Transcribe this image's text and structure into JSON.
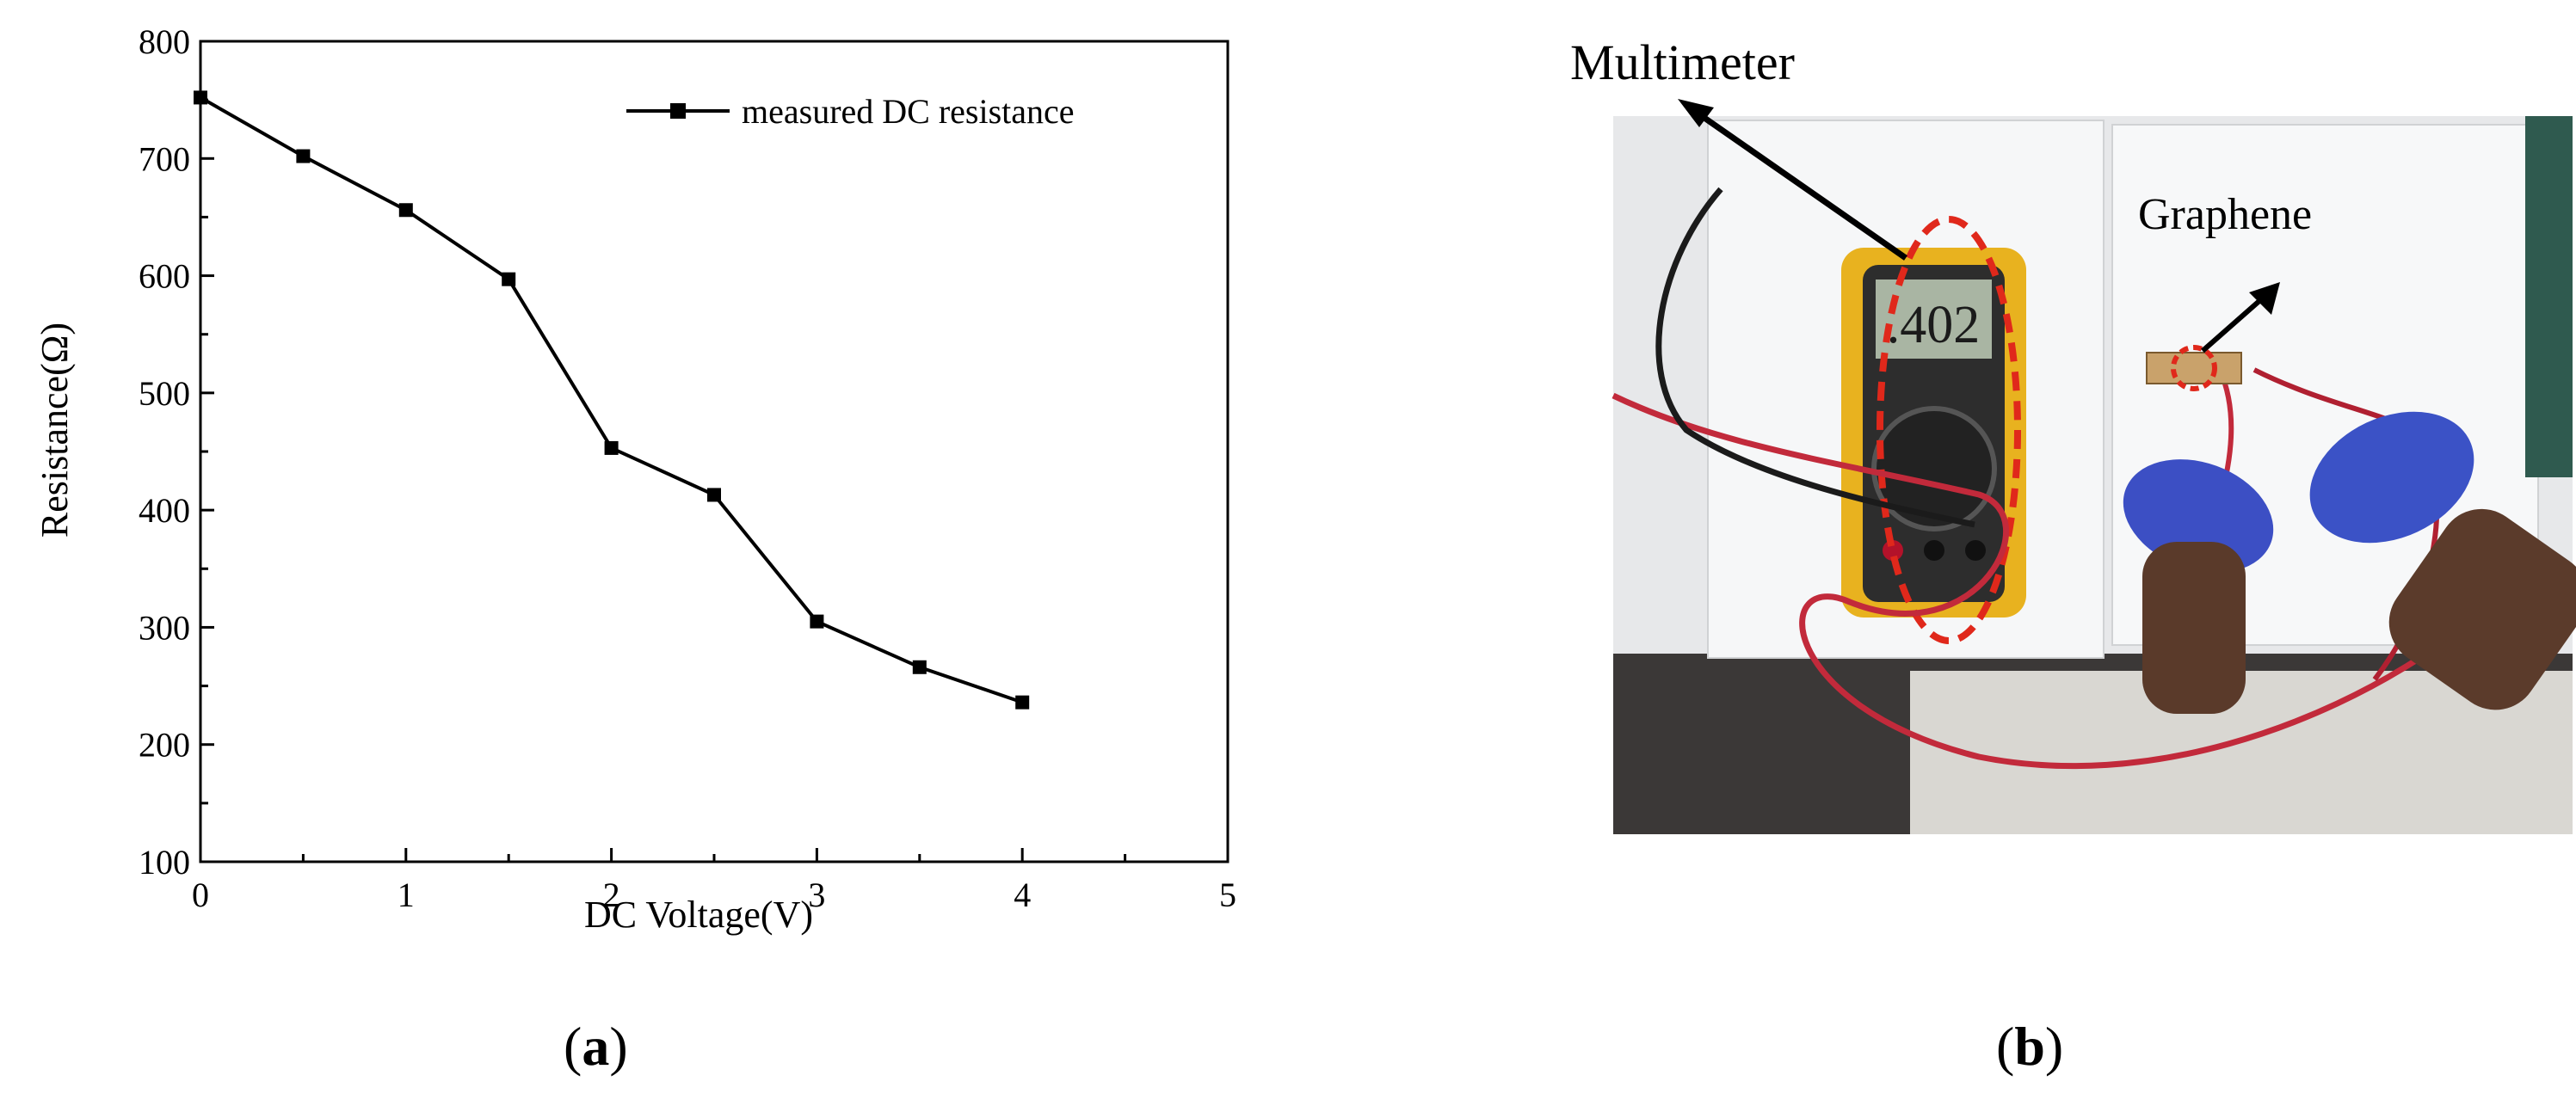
{
  "chart_data": {
    "type": "line",
    "xlabel": "DC Voltage(V)",
    "ylabel": "Resistance(Ω)",
    "xlim": [
      0,
      5
    ],
    "ylim": [
      100,
      800
    ],
    "xticks": [
      "0",
      "1",
      "2",
      "3",
      "4",
      "5"
    ],
    "yticks": [
      "100",
      "200",
      "300",
      "400",
      "500",
      "600",
      "700",
      "800"
    ],
    "grid": false,
    "legend_position": "top-right",
    "series": [
      {
        "name": "measured DC resistance",
        "marker": "square",
        "color": "#000000",
        "x": [
          0,
          0.5,
          1,
          1.5,
          2,
          2.5,
          3,
          3.5,
          4
        ],
        "y": [
          752,
          702,
          656,
          597,
          453,
          413,
          305,
          266,
          236
        ]
      }
    ]
  },
  "panels": {
    "a_label": "a",
    "b_label": "b"
  },
  "photo": {
    "multimeter_label": "Multimeter",
    "graphene_label": "Graphene",
    "display_reading": ".402"
  }
}
